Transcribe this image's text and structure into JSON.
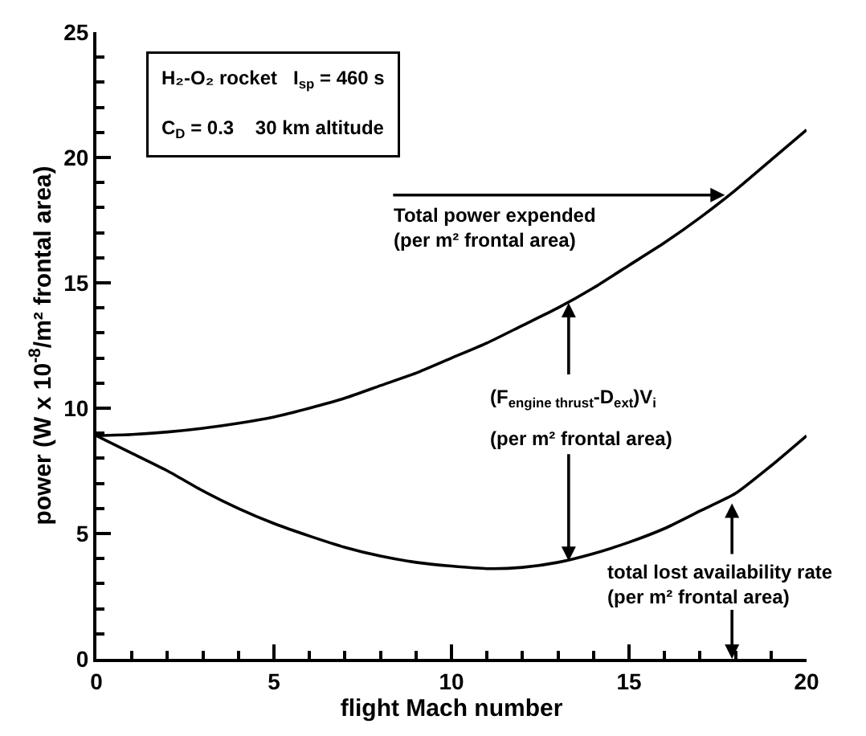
{
  "chart_data": {
    "type": "line",
    "xlabel": "flight Mach number",
    "ylabel": "power (W x 10$^{-8}$/m² frontal area)",
    "series": [
      {
        "color": "#000000",
        "x": [
          0,
          1,
          2,
          3,
          4,
          5,
          6,
          7,
          8,
          9,
          10,
          11,
          12,
          13,
          14,
          15,
          16,
          17,
          18,
          19,
          20
        ],
        "values": [
          8.9,
          8.95,
          9.05,
          9.2,
          9.4,
          9.65,
          10.0,
          10.4,
          10.9,
          11.4,
          12.0,
          12.6,
          13.3,
          14.0,
          14.8,
          15.7,
          16.6,
          17.6,
          18.7,
          19.9,
          21.1
        ]
      },
      {
        "color": "#000000",
        "x": [
          0,
          1,
          2,
          3,
          4,
          5,
          6,
          7,
          8,
          9,
          10,
          11,
          12,
          13,
          14,
          15,
          16,
          17,
          18,
          19,
          20
        ],
        "values": [
          8.9,
          8.2,
          7.5,
          6.7,
          6.0,
          5.4,
          4.9,
          4.45,
          4.1,
          3.85,
          3.7,
          3.6,
          3.65,
          3.85,
          4.2,
          4.65,
          5.2,
          5.9,
          6.6,
          7.7,
          8.9
        ]
      }
    ],
    "annotations": [
      "H₂-O₂ rocket   I$_{sp}$ = 460 s",
      "C$_{D}$ = 0.3    30 km altitude",
      {
        "text": "Total power expended\n(per m² frontal area)",
        "x": 17.7,
        "y": 18.5
      },
      {
        "text": "(F$_{engine thrust}$-D$_{ext}$)V$_{i}$",
        "x": 13.3,
        "y": 14.2
      },
      {
        "text": "(per m² frontal area)",
        "x": 13.3,
        "y": 3.9
      },
      {
        "text": "total lost availability rate\n(per m² frontal area)",
        "x": 17.9,
        "y": 6.2
      }
    ],
    "xlim": [
      0,
      20
    ],
    "xticks": [
      0,
      5,
      10,
      15,
      20
    ],
    "ylim": [
      0,
      25
    ],
    "yticks": [
      0,
      5,
      10,
      15,
      20,
      25
    ],
    "grid": false,
    "marker": "none",
    "line_style": "solid"
  }
}
